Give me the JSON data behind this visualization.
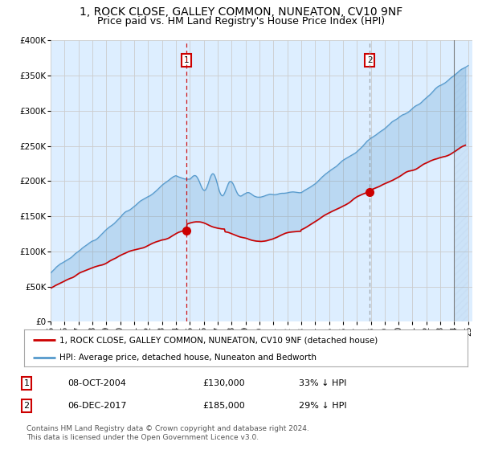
{
  "title": "1, ROCK CLOSE, GALLEY COMMON, NUNEATON, CV10 9NF",
  "subtitle": "Price paid vs. HM Land Registry's House Price Index (HPI)",
  "title_fontsize": 10,
  "subtitle_fontsize": 9,
  "ylim": [
    0,
    400000
  ],
  "yticks": [
    0,
    50000,
    100000,
    150000,
    200000,
    250000,
    300000,
    350000,
    400000
  ],
  "ytick_labels": [
    "£0",
    "£50K",
    "£100K",
    "£150K",
    "£200K",
    "£250K",
    "£300K",
    "£350K",
    "£400K"
  ],
  "background_color": "#ddeeff",
  "hpi_color": "#5599cc",
  "hpi_fill_alpha": 0.25,
  "house_color": "#cc0000",
  "marker1_year": 2004.77,
  "marker1_price": 130000,
  "marker2_year": 2017.92,
  "marker2_price": 185000,
  "vline1_color": "#cc0000",
  "vline2_color": "#888888",
  "hatch_start": 2024.0,
  "legend_line1": "1, ROCK CLOSE, GALLEY COMMON, NUNEATON, CV10 9NF (detached house)",
  "legend_line2": "HPI: Average price, detached house, Nuneaton and Bedworth",
  "footnote": "Contains HM Land Registry data © Crown copyright and database right 2024.\nThis data is licensed under the Open Government Licence v3.0.",
  "table_row1": [
    "1",
    "08-OCT-2004",
    "£130,000",
    "33% ↓ HPI"
  ],
  "table_row2": [
    "2",
    "06-DEC-2017",
    "£185,000",
    "29% ↓ HPI"
  ],
  "grid_color": "#cccccc",
  "xlim_start": 1995,
  "xlim_end": 2025.3
}
